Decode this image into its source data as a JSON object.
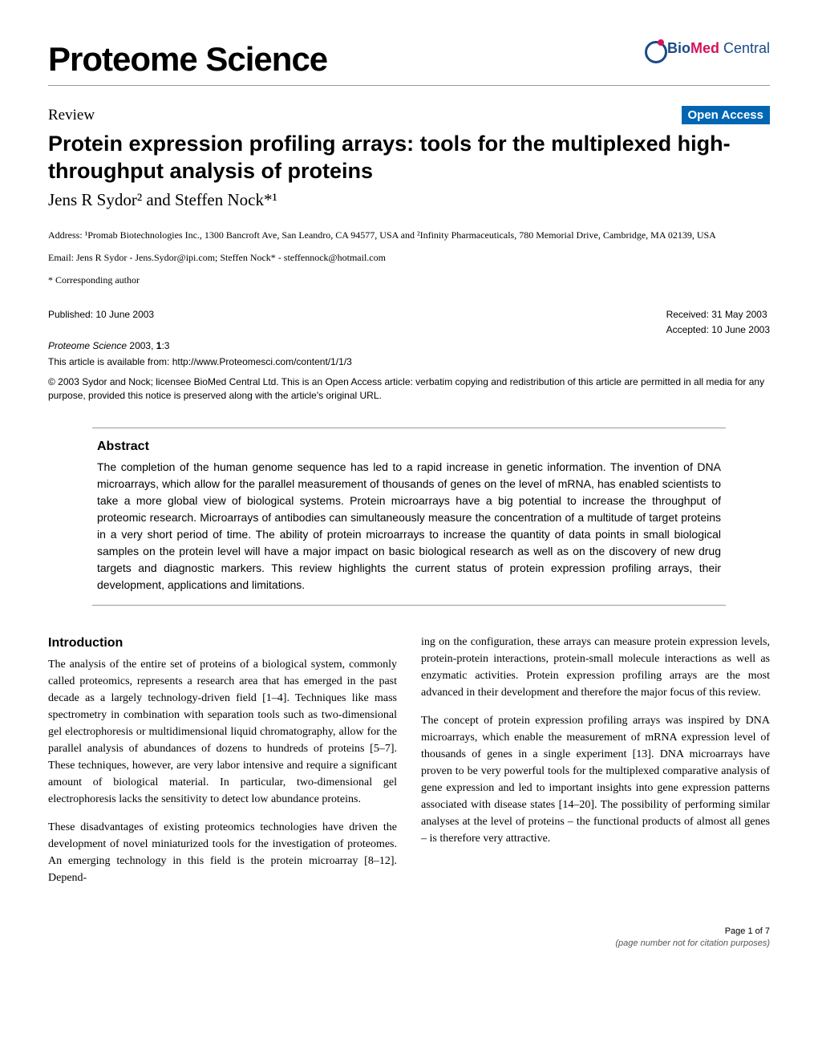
{
  "journal": {
    "name": "Proteome Science",
    "logo_bio": "Bio",
    "logo_med": "Med",
    "logo_central": " Central"
  },
  "badge": {
    "section": "Review",
    "open_access": "Open Access"
  },
  "article": {
    "title": "Protein expression profiling arrays: tools for the multiplexed high-throughput analysis of proteins",
    "authors_html": "Jens R Sydor² and Steffen Nock*¹"
  },
  "address": "Address: ¹Promab Biotechnologies Inc., 1300 Bancroft Ave, San Leandro, CA 94577, USA and ²Infinity Pharmaceuticals, 780 Memorial Drive, Cambridge, MA 02139, USA",
  "emails": "Email: Jens R Sydor - Jens.Sydor@ipi.com; Steffen Nock* - steffennock@hotmail.com",
  "corresponding": "* Corresponding author",
  "pub": {
    "published": "Published: 10 June 2003",
    "received": "Received: 31 May 2003",
    "accepted": "Accepted: 10 June 2003"
  },
  "citation": {
    "journal_italic": "Proteome Science",
    "rest": " 2003, ",
    "vol": "1",
    "issue_page": ":3"
  },
  "article_url": "This article is available from: http://www.Proteomesci.com/content/1/1/3",
  "copyright": "© 2003 Sydor and Nock; licensee BioMed Central Ltd. This is an Open Access article: verbatim copying and redistribution of this article are permitted in all media for any purpose, provided this notice is preserved along with the article's original URL.",
  "abstract": {
    "heading": "Abstract",
    "text": "The completion of the human genome sequence has led to a rapid increase in genetic information. The invention of DNA microarrays, which allow for the parallel measurement of thousands of genes on the level of mRNA, has enabled scientists to take a more global view of biological systems. Protein microarrays have a big potential to increase the throughput of proteomic research. Microarrays of antibodies can simultaneously measure the concentration of a multitude of target proteins in a very short period of time. The ability of protein microarrays to increase the quantity of data points in small biological samples on the protein level will have a major impact on basic biological research as well as on the discovery of new drug targets and diagnostic markers. This review highlights the current status of protein expression profiling arrays, their development, applications and limitations."
  },
  "body": {
    "intro_heading": "Introduction",
    "left_p1": "The analysis of the entire set of proteins of a biological system, commonly called proteomics, represents a research area that has emerged in the past decade as a largely technology-driven field [1–4]. Techniques like mass spectrometry in combination with separation tools such as two-dimensional gel electrophoresis or multidimensional liquid chromatography, allow for the parallel analysis of abundances of dozens to hundreds of proteins [5–7]. These techniques, however, are very labor intensive and require a significant amount of biological material. In particular, two-dimensional gel electrophoresis lacks the sensitivity to detect low abundance proteins.",
    "left_p2": "These disadvantages of existing proteomics technologies have driven the development of novel miniaturized tools for the investigation of proteomes. An emerging technology in this field is the protein microarray [8–12]. Depend-",
    "right_p1": "ing on the configuration, these arrays can measure protein expression levels, protein-protein interactions, protein-small molecule interactions as well as enzymatic activities. Protein expression profiling arrays are the most advanced in their development and therefore the major focus of this review.",
    "right_p2": "The concept of protein expression profiling arrays was inspired by DNA microarrays, which enable the measurement of mRNA expression level of thousands of genes in a single experiment [13]. DNA microarrays have proven to be very powerful tools for the multiplexed comparative analysis of gene expression and led to important insights into gene expression patterns associated with disease states [14–20]. The possibility of performing similar analyses at the level of proteins – the functional products of almost all genes – is therefore very attractive."
  },
  "footer": {
    "page_num": "Page 1 of 7",
    "note": "(page number not for citation purposes)"
  },
  "colors": {
    "badge_bg": "#0066b3",
    "text": "#000000",
    "rule": "#999999",
    "logo_blue": "#1a4a8a",
    "logo_red": "#d4145a"
  },
  "typography": {
    "journal_title_pt": 42,
    "article_title_pt": 27,
    "authors_pt": 21,
    "body_pt": 14,
    "small_pt": 12
  }
}
